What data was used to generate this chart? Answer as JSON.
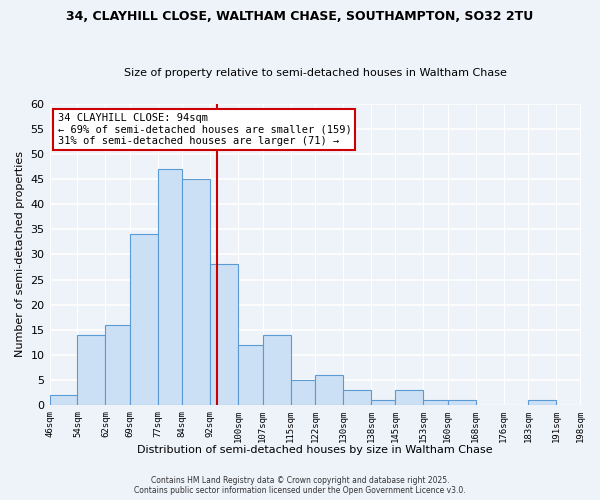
{
  "title1": "34, CLAYHILL CLOSE, WALTHAM CHASE, SOUTHAMPTON, SO32 2TU",
  "title2": "Size of property relative to semi-detached houses in Waltham Chase",
  "xlabel": "Distribution of semi-detached houses by size in Waltham Chase",
  "ylabel": "Number of semi-detached properties",
  "bin_edges": [
    46,
    54,
    62,
    69,
    77,
    84,
    92,
    100,
    107,
    115,
    122,
    130,
    138,
    145,
    153,
    160,
    168,
    176,
    183,
    191,
    198
  ],
  "counts": [
    2,
    14,
    16,
    34,
    47,
    45,
    28,
    12,
    14,
    5,
    6,
    3,
    1,
    3,
    1,
    1,
    0,
    0,
    1,
    0
  ],
  "tick_labels": [
    "46sqm",
    "54sqm",
    "62sqm",
    "69sqm",
    "77sqm",
    "84sqm",
    "92sqm",
    "100sqm",
    "107sqm",
    "115sqm",
    "122sqm",
    "130sqm",
    "138sqm",
    "145sqm",
    "153sqm",
    "160sqm",
    "168sqm",
    "176sqm",
    "183sqm",
    "191sqm",
    "198sqm"
  ],
  "property_size": 94,
  "bar_color": "#cce0f5",
  "bar_edge_color": "#5b9bd5",
  "vline_color": "#cc0000",
  "ylim": [
    0,
    60
  ],
  "yticks": [
    0,
    5,
    10,
    15,
    20,
    25,
    30,
    35,
    40,
    45,
    50,
    55,
    60
  ],
  "annotation_title": "34 CLAYHILL CLOSE: 94sqm",
  "annotation_line1": "← 69% of semi-detached houses are smaller (159)",
  "annotation_line2": "31% of semi-detached houses are larger (71) →",
  "annotation_box_color": "#ffffff",
  "annotation_box_edge": "#cc0000",
  "footer1": "Contains HM Land Registry data © Crown copyright and database right 2025.",
  "footer2": "Contains public sector information licensed under the Open Government Licence v3.0.",
  "background_color": "#eef2f9"
}
